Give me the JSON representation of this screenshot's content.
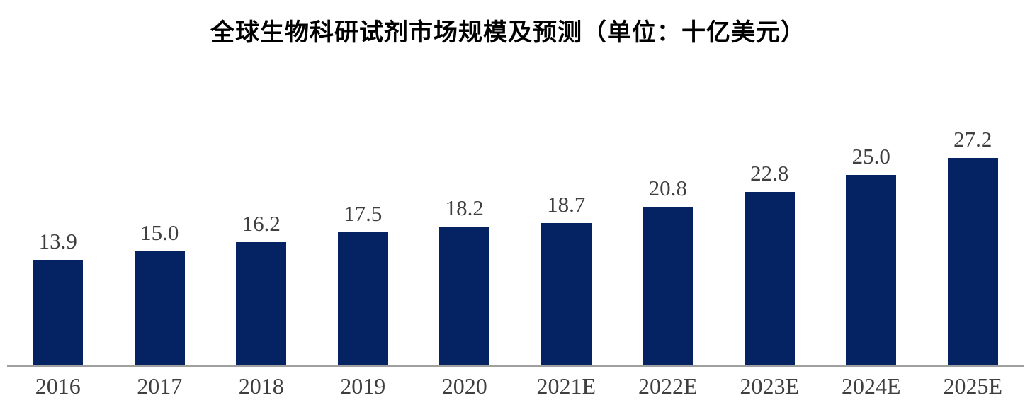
{
  "title": "全球生物科研试剂市场规模及预测（单位：十亿美元）",
  "unit": "十亿美元",
  "colors": {
    "bar": "#052363",
    "axis_line": "#A0A0A0",
    "data_label": "#3F3F3F",
    "x_tick_label": "#3F3F3F",
    "title": "#000000",
    "background": "#FFFFFF"
  },
  "chart_data": {
    "type": "bar",
    "title": "全球生物科研试剂市场规模及预测（单位：十亿美元）",
    "categories": [
      "2016",
      "2017",
      "2018",
      "2019",
      "2020",
      "2021E",
      "2022E",
      "2023E",
      "2024E",
      "2025E"
    ],
    "values": [
      13.9,
      15.0,
      16.2,
      17.5,
      18.2,
      18.7,
      20.8,
      22.8,
      25.0,
      27.2
    ],
    "data_labels": [
      "13.9",
      "15.0",
      "16.2",
      "17.5",
      "18.2",
      "18.7",
      "20.8",
      "22.8",
      "25.0",
      "27.2"
    ],
    "xlabel": "",
    "ylabel": "",
    "ylim": [
      0,
      30
    ],
    "grid": false,
    "legend_position": "none",
    "y_axis_visible": false,
    "data_labels_position": "above-bars"
  }
}
